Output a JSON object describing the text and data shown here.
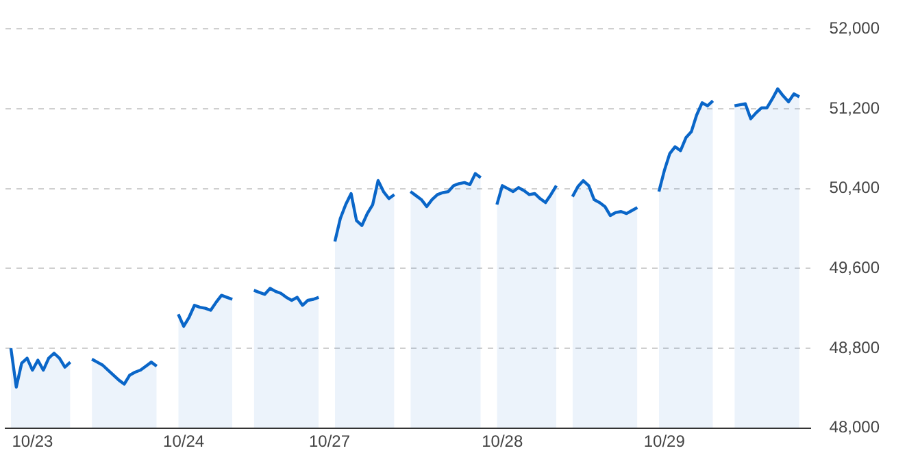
{
  "chart_data": {
    "type": "area",
    "color": "#0a66c8",
    "categories": [
      null,
      null,
      null,
      null,
      null,
      "10/23",
      null,
      null,
      null,
      null,
      null,
      null,
      null,
      null,
      null,
      null,
      null,
      null,
      null,
      null,
      null,
      null,
      null,
      null,
      null,
      null,
      null,
      null,
      null,
      null,
      null,
      null,
      null,
      "10/24",
      null,
      null,
      null,
      null,
      null,
      null,
      null,
      null,
      null,
      null,
      null,
      null,
      null,
      null,
      null,
      null,
      null,
      null,
      null,
      null,
      null,
      null,
      null,
      null,
      null,
      null,
      "10/27",
      null,
      null,
      null,
      null,
      null,
      null,
      null,
      null,
      null,
      null,
      null,
      null,
      null,
      null,
      null,
      null,
      null,
      null,
      null,
      null,
      null,
      null,
      null,
      null,
      null,
      null,
      null,
      null,
      null,
      null,
      null,
      "10/28",
      null,
      null,
      null,
      null,
      null,
      null,
      null,
      null,
      null,
      null,
      null,
      null,
      null,
      null,
      null,
      null,
      null,
      null,
      null,
      null,
      null,
      null,
      null,
      null,
      null,
      null,
      null,
      null,
      null,
      "10/29",
      null,
      null,
      null,
      null,
      null,
      null,
      null,
      null,
      null,
      null,
      null,
      null,
      null,
      null,
      null,
      null,
      null,
      null,
      null,
      null,
      null,
      null,
      null,
      null,
      null,
      null,
      null
    ],
    "values": [
      null,
      48800,
      48410,
      48650,
      48700,
      48580,
      48680,
      48580,
      48700,
      48750,
      48700,
      48610,
      48660,
      null,
      null,
      null,
      48690,
      48660,
      48630,
      48580,
      48530,
      48480,
      48440,
      48530,
      48560,
      48580,
      48620,
      48660,
      48620,
      null,
      null,
      null,
      49140,
      49020,
      49110,
      49230,
      49210,
      49200,
      49180,
      49260,
      49330,
      49310,
      49290,
      null,
      null,
      null,
      49380,
      49360,
      49340,
      49400,
      49370,
      49350,
      49310,
      49280,
      49310,
      49230,
      49280,
      49290,
      49310,
      null,
      null,
      49870,
      50100,
      50240,
      50350,
      50080,
      50030,
      50150,
      50240,
      50480,
      50370,
      50300,
      50340,
      null,
      null,
      50370,
      50330,
      50290,
      50220,
      50290,
      50340,
      50360,
      50370,
      50430,
      50450,
      50460,
      50440,
      50550,
      50510,
      null,
      null,
      50240,
      50430,
      50400,
      50370,
      50410,
      50380,
      50340,
      50350,
      50300,
      50260,
      50340,
      50430,
      null,
      null,
      50320,
      50420,
      50480,
      50430,
      50290,
      50260,
      50220,
      50130,
      50160,
      50170,
      50150,
      50180,
      50210,
      null,
      null,
      null,
      50370,
      50580,
      50750,
      50820,
      50780,
      50910,
      50970,
      51140,
      51260,
      51230,
      51280,
      null,
      null,
      null,
      51230,
      51240,
      51250,
      51100,
      51160,
      51210,
      51210,
      51300,
      51400,
      51330,
      51270,
      51350,
      51320,
      null,
      null
    ],
    "ylim": [
      48000,
      52000
    ],
    "yticks": [
      {
        "value": 48000,
        "label": "48,000"
      },
      {
        "value": 48800,
        "label": "48,800"
      },
      {
        "value": 49600,
        "label": "49,600"
      },
      {
        "value": 50400,
        "label": "50,400"
      },
      {
        "value": 51200,
        "label": "51,200"
      },
      {
        "value": 52000,
        "label": "52,000"
      }
    ],
    "grid": "y",
    "line_style": "solid"
  }
}
